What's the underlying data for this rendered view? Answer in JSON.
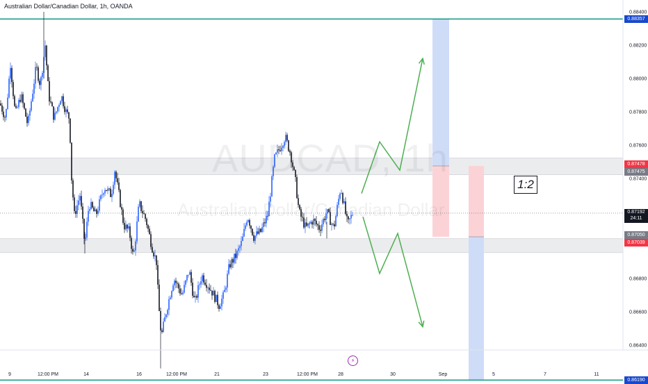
{
  "header": {
    "title": "Australian Dollar/Canadian Dollar, 1h, OANDA"
  },
  "watermark": {
    "symbol": "AUDCAD, 1h",
    "name": "Australian Dollar/Canadian Dollar"
  },
  "annotations": {
    "risk_reward": "1:2",
    "event_icon": "lightning-icon"
  },
  "colors": {
    "up_candle": "#2962ff",
    "down_candle": "#131722",
    "level_line": "#089981",
    "zone_fill": "#e6e7ea",
    "arrow": "#4caf50",
    "target_fill": "#cfdcf8",
    "stop_fill": "#fbd3d6",
    "label_blue": "#1848cc",
    "label_red": "#f23645",
    "label_gray": "#787b86",
    "label_dark": "#131722"
  },
  "price_labels": {
    "top_level": "0.88357",
    "resist_high": "0.87478",
    "resist_low": "0.87475",
    "current": "0.87192",
    "countdown": "24:11",
    "support_high": "0.87050",
    "support_low": "0.87039",
    "bottom_level": "0.86190"
  },
  "chart_data": {
    "type": "candlestick",
    "title": "Australian Dollar/Canadian Dollar, 1h, OANDA",
    "y_axis": {
      "ticks": [
        "0.88400",
        "0.88200",
        "0.88000",
        "0.87800",
        "0.87600",
        "0.87400",
        "0.86800",
        "0.86600",
        "0.86400"
      ],
      "range": [
        0.8614,
        0.884
      ]
    },
    "x_axis": {
      "ticks": [
        "9",
        "12:00 PM",
        "14",
        "16",
        "12:00 PM",
        "21",
        "23",
        "12:00 PM",
        "28",
        "30",
        "Sep",
        "5",
        "7",
        "11"
      ]
    },
    "horizontal_levels": [
      0.88357,
      0.8619
    ],
    "zones": [
      {
        "name": "resistance",
        "from": 0.87422,
        "to": 0.87524
      },
      {
        "name": "support",
        "from": 0.87039,
        "to": 0.86955
      }
    ],
    "current_price": 0.87192,
    "path": [
      [
        0,
        0.8785
      ],
      [
        8,
        0.8776
      ],
      [
        15,
        0.8809
      ],
      [
        22,
        0.8778
      ],
      [
        30,
        0.879
      ],
      [
        40,
        0.8772
      ],
      [
        52,
        0.8807
      ],
      [
        58,
        0.8796
      ],
      [
        65,
        0.882
      ],
      [
        70,
        0.879
      ],
      [
        78,
        0.8776
      ],
      [
        88,
        0.879
      ],
      [
        95,
        0.878
      ],
      [
        100,
        0.8776
      ],
      [
        103,
        0.874
      ],
      [
        107,
        0.8718
      ],
      [
        115,
        0.873
      ],
      [
        122,
        0.87
      ],
      [
        128,
        0.8725
      ],
      [
        138,
        0.8718
      ],
      [
        150,
        0.8735
      ],
      [
        160,
        0.873
      ],
      [
        165,
        0.8745
      ],
      [
        172,
        0.8728
      ],
      [
        178,
        0.8712
      ],
      [
        186,
        0.8708
      ],
      [
        192,
        0.8692
      ],
      [
        200,
        0.8725
      ],
      [
        210,
        0.8715
      ],
      [
        218,
        0.87
      ],
      [
        225,
        0.869
      ],
      [
        228,
        0.8665
      ],
      [
        232,
        0.8645
      ],
      [
        240,
        0.8662
      ],
      [
        250,
        0.868
      ],
      [
        262,
        0.867
      ],
      [
        272,
        0.8685
      ],
      [
        280,
        0.8665
      ],
      [
        290,
        0.8682
      ],
      [
        305,
        0.8672
      ],
      [
        315,
        0.8664
      ],
      [
        322,
        0.867
      ],
      [
        330,
        0.8688
      ],
      [
        340,
        0.8694
      ],
      [
        348,
        0.8702
      ],
      [
        356,
        0.8718
      ],
      [
        365,
        0.8705
      ],
      [
        375,
        0.8708
      ],
      [
        385,
        0.8718
      ],
      [
        390,
        0.8735
      ],
      [
        395,
        0.8752
      ],
      [
        402,
        0.8758
      ],
      [
        410,
        0.8765
      ],
      [
        418,
        0.8755
      ],
      [
        425,
        0.8738
      ],
      [
        430,
        0.872
      ],
      [
        440,
        0.871
      ],
      [
        450,
        0.8715
      ],
      [
        460,
        0.871
      ],
      [
        470,
        0.872
      ],
      [
        480,
        0.871
      ],
      [
        490,
        0.8735
      ],
      [
        500,
        0.8712
      ],
      [
        507,
        0.8719
      ]
    ],
    "projection": {
      "up_path": [
        [
          520,
          0.8731
        ],
        [
          546,
          0.8762
        ],
        [
          575,
          0.8745
        ],
        [
          608,
          0.8812
        ]
      ],
      "down_path": [
        [
          522,
          0.8717
        ],
        [
          546,
          0.8683
        ],
        [
          572,
          0.8707
        ],
        [
          608,
          0.8651
        ]
      ]
    },
    "position_long": {
      "entry": 0.87475,
      "target": 0.88357
    },
    "position_short": {
      "entry": 0.8705,
      "target": 0.8619
    }
  }
}
